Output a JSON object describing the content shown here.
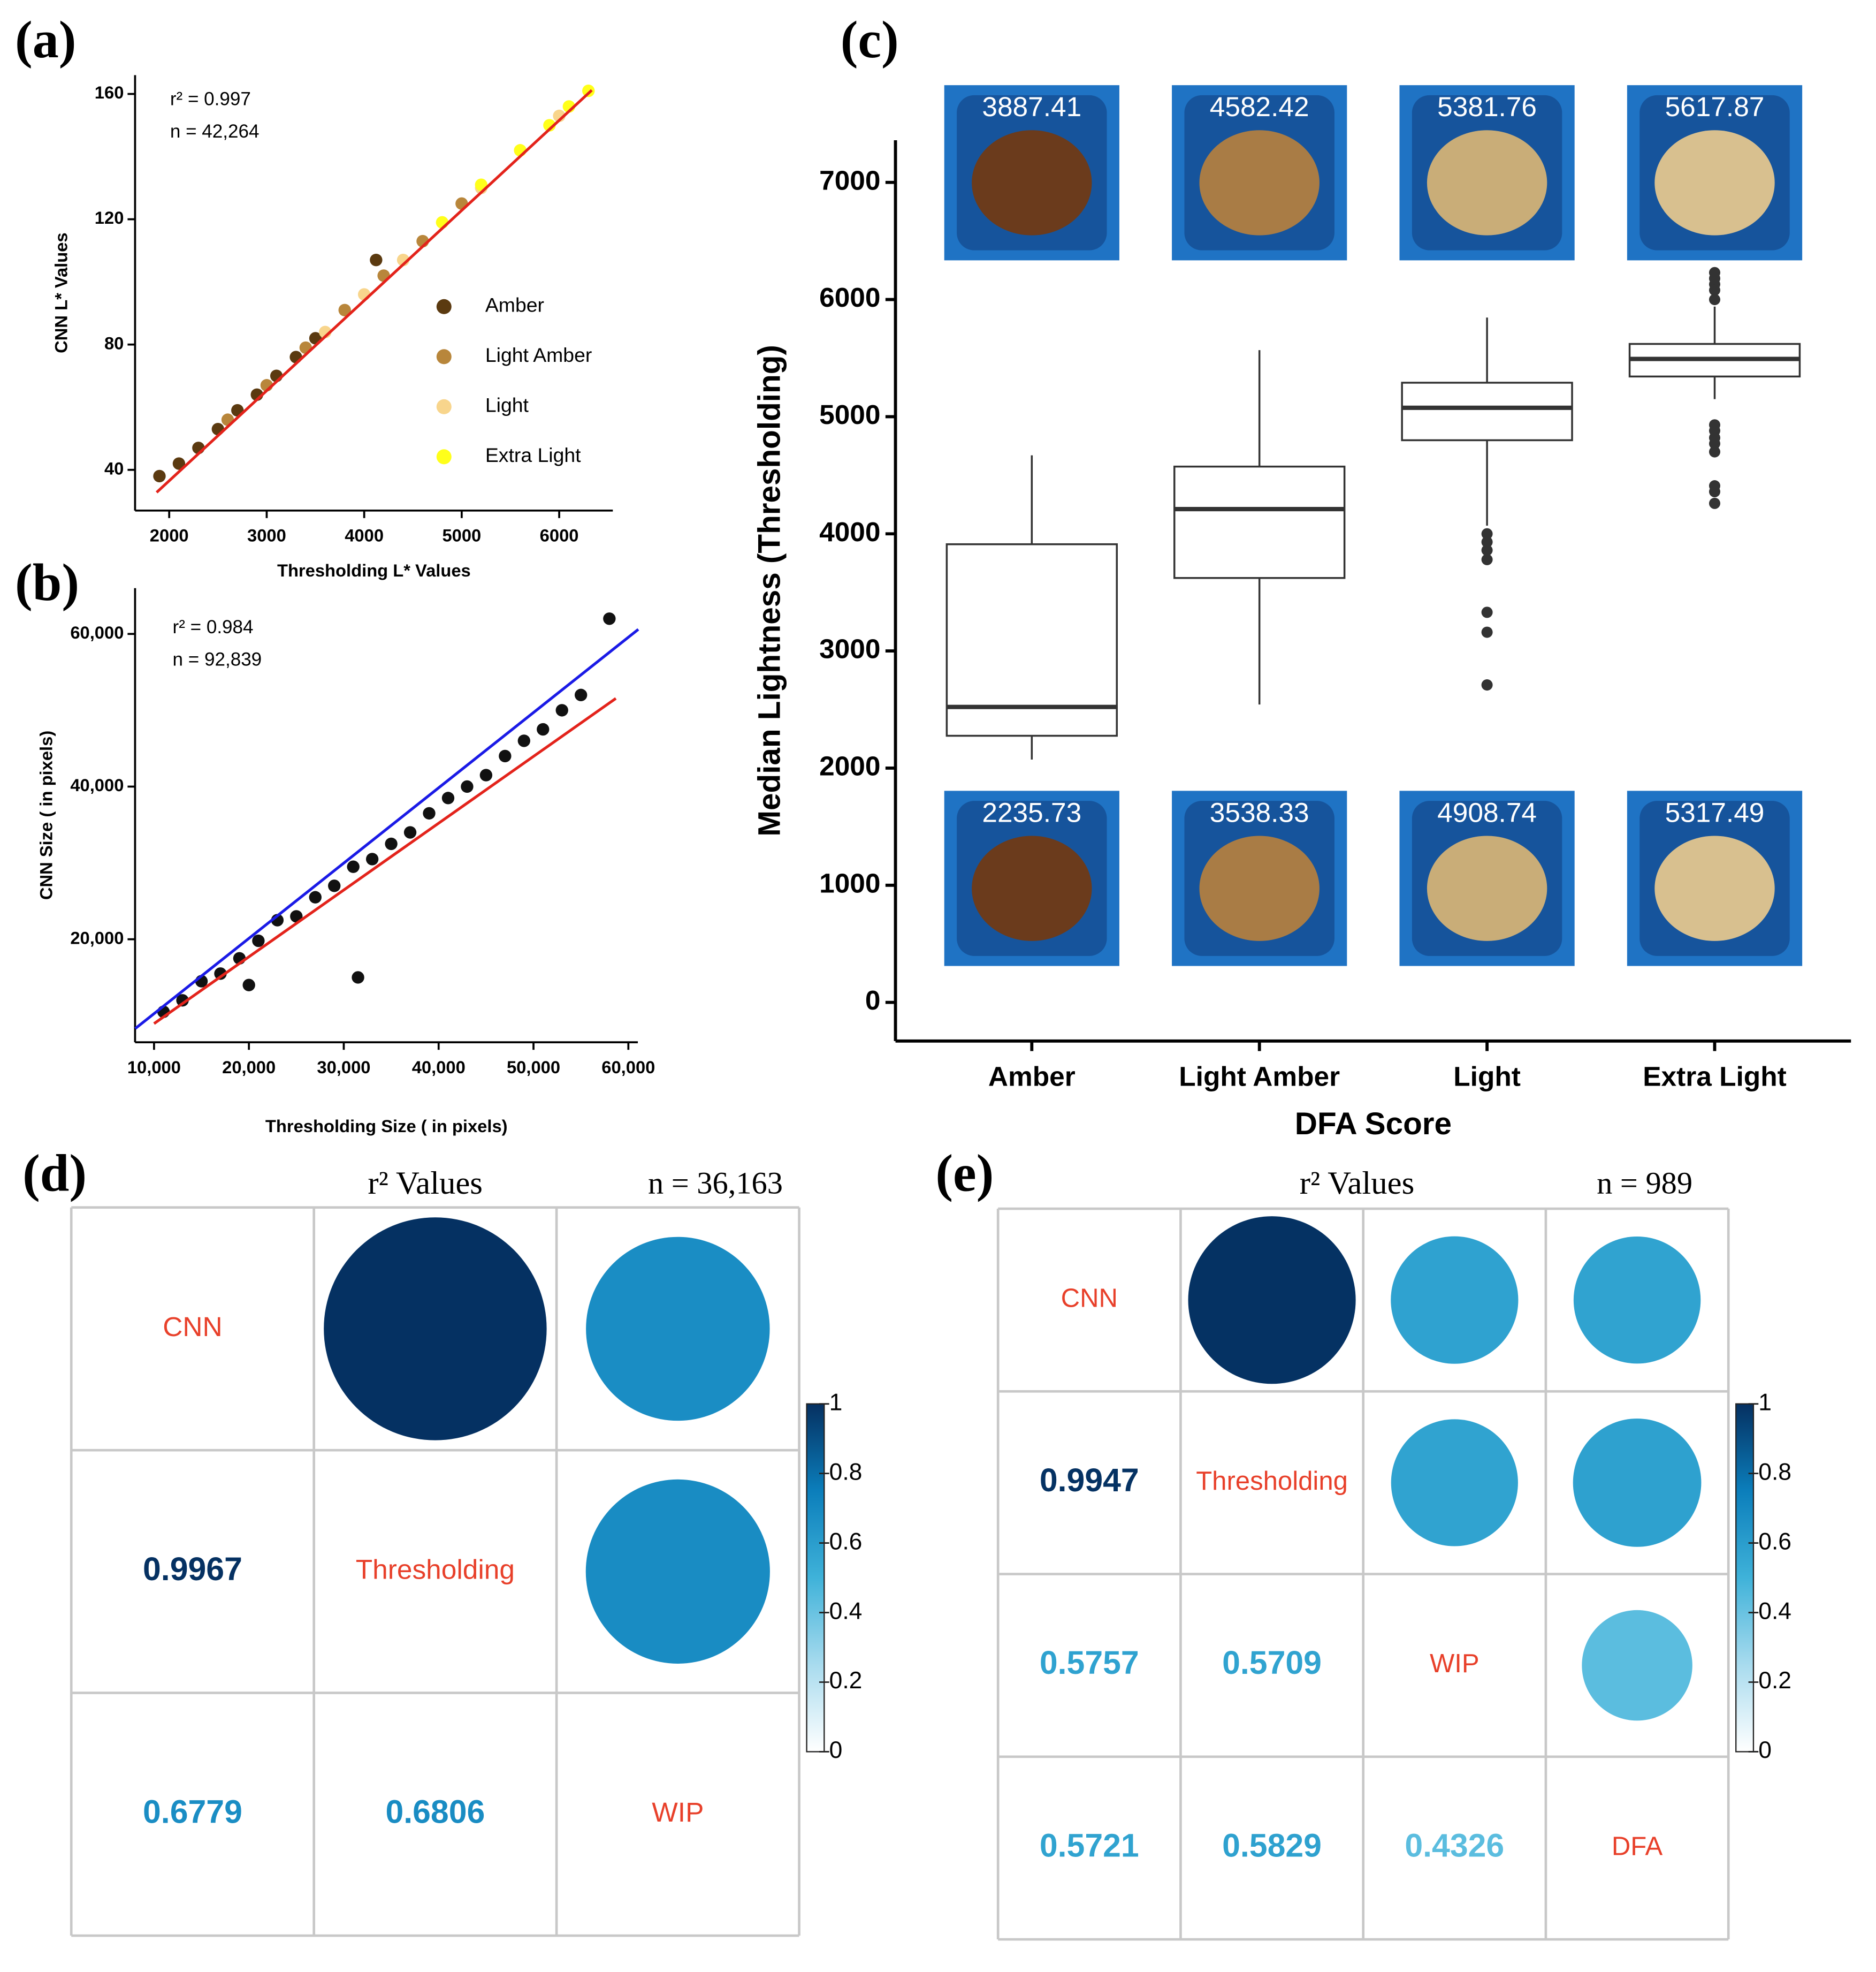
{
  "chart_data": [
    {
      "type": "scatter",
      "panel": "(a)",
      "annotations": [
        "r² = 0.997",
        "n = 42,264"
      ],
      "xlabel": "Thresholding L* Values",
      "ylabel": "CNN L* Values",
      "xlim": [
        1650,
        6550
      ],
      "ylim": [
        27,
        166
      ],
      "xticks": [
        2000,
        3000,
        4000,
        5000,
        6000
      ],
      "yticks": [
        40,
        80,
        120,
        160
      ],
      "series": [
        {
          "name": "Amber",
          "color": "#5b3a10",
          "x": [
            1900,
            2100,
            2300,
            2500,
            2700,
            2900,
            3100,
            3300,
            3500,
            4122
          ],
          "values": [
            38,
            42,
            47,
            53,
            59,
            64,
            70,
            76,
            82,
            107
          ]
        },
        {
          "name": "Light Amber",
          "color": "#b8863b",
          "x": [
            2600,
            3000,
            3400,
            3800,
            4200,
            4600,
            5000
          ],
          "values": [
            56,
            67,
            79,
            91,
            102,
            113,
            125
          ]
        },
        {
          "name": "Light",
          "color": "#f8d58c",
          "x": [
            3600,
            4000,
            4400,
            4800,
            5200,
            5600,
            6000
          ],
          "values": [
            84,
            96,
            107,
            119,
            130,
            142,
            153
          ]
        },
        {
          "name": "Extra Light",
          "color": "#ffff1a",
          "x": [
            4800,
            5200,
            5600,
            5900,
            6100,
            6300
          ],
          "values": [
            119,
            131,
            142,
            150,
            156,
            161
          ]
        }
      ],
      "fit_lines": [
        {
          "color": "#e3231b",
          "x": [
            1871,
            6334
          ],
          "values": [
            32.8,
            161.2
          ]
        }
      ]
    },
    {
      "type": "scatter",
      "panel": "(b)",
      "annotations": [
        "r² = 0.984",
        "n = 92,839"
      ],
      "xlabel": "Thresholding Size ( in pixels)",
      "ylabel": "CNN Size ( in pixels)",
      "xlim": [
        8000,
        61000
      ],
      "ylim": [
        6500,
        66000
      ],
      "xticks": [
        {
          "value": 10000,
          "label": "10,000"
        },
        {
          "value": 20000,
          "label": "20,000"
        },
        {
          "value": 30000,
          "label": "30,000"
        },
        {
          "value": 40000,
          "label": "40,000"
        },
        {
          "value": 50000,
          "label": "50,000"
        },
        {
          "value": 60000,
          "label": "60,000"
        }
      ],
      "yticks": [
        {
          "value": 20000,
          "label": "20,000"
        },
        {
          "value": 40000,
          "label": "40,000"
        },
        {
          "value": 60000,
          "label": "60,000"
        }
      ],
      "series": [
        {
          "color": "#111111",
          "x": [
            11000,
            13000,
            15000,
            17000,
            19000,
            20000,
            21000,
            23000,
            25000,
            27000,
            29000,
            31000,
            31500,
            33000,
            35000,
            37000,
            39000,
            41000,
            43000,
            45000,
            47000,
            49000,
            51000,
            53000,
            55000,
            58000
          ],
          "values": [
            10500,
            12000,
            14500,
            15500,
            17500,
            14000,
            19800,
            22500,
            23000,
            25500,
            27000,
            29500,
            15000,
            30500,
            32500,
            34000,
            36500,
            38500,
            40000,
            41500,
            44000,
            46000,
            47500,
            50000,
            52000,
            62000
          ]
        }
      ],
      "fit_lines": [
        {
          "color": "#1a1ae6",
          "x": [
            8020,
            61050
          ],
          "values": [
            8300,
            60600
          ]
        },
        {
          "color": "#e3231b",
          "x": [
            10000,
            58680
          ],
          "values": [
            8950,
            51550
          ]
        }
      ]
    },
    {
      "type": "box",
      "panel": "(c)",
      "xlabel": "DFA Score",
      "ylabel": "Median Lightness (Thresholding)",
      "categories": [
        "Amber",
        "Light Amber",
        "Light",
        "Extra Light"
      ],
      "ylim": [
        -330,
        7360
      ],
      "yticks": [
        0,
        1000,
        2000,
        3000,
        4000,
        5000,
        6000,
        7000
      ],
      "boxes": [
        {
          "whislo": 2073,
          "q1": 2276,
          "med": 2522,
          "q3": 3911,
          "whishi": 4670,
          "fliers": []
        },
        {
          "whislo": 2543,
          "q1": 3623,
          "med": 4211,
          "q3": 4574,
          "whishi": 5568,
          "fliers": []
        },
        {
          "whislo": 4070,
          "q1": 4799,
          "med": 5076,
          "q3": 5290,
          "whishi": 5846,
          "fliers": [
            4000,
            3930,
            3860,
            3780,
            3330,
            3160,
            2710
          ]
        },
        {
          "whislo": 5150,
          "q1": 5343,
          "med": 5493,
          "q3": 5621,
          "whishi": 5940,
          "fliers": [
            6230,
            6180,
            6130,
            6080,
            6000,
            4930,
            4880,
            4820,
            4770,
            4700,
            4410,
            4360,
            4260
          ]
        }
      ],
      "image_labels_top": [
        3887.41,
        4582.42,
        5381.76,
        5617.87
      ],
      "image_labels_bottom": [
        2235.73,
        3538.33,
        4908.74,
        5317.49
      ]
    },
    {
      "type": "corrplot",
      "panel": "(d)",
      "title": "r² Values",
      "note": "n = 36,163",
      "labels": [
        "CNN",
        "Thresholding",
        "WIP"
      ],
      "values": [
        [
          null,
          null,
          null
        ],
        [
          0.9967,
          null,
          null
        ],
        [
          0.6779,
          0.6806,
          null
        ]
      ],
      "clim": [
        0,
        1
      ],
      "colorbar_ticks": [
        0,
        0.2,
        0.4,
        0.6,
        0.8,
        1
      ],
      "colorscale": [
        "#ffffff",
        "#a8dbee",
        "#3fb2d9",
        "#0b7ebb",
        "#053061"
      ]
    },
    {
      "type": "corrplot",
      "panel": "(e)",
      "title": "r² Values",
      "note": "n = 989",
      "labels": [
        "CNN",
        "Thresholding",
        "WIP",
        "DFA"
      ],
      "values": [
        [
          null,
          null,
          null,
          null
        ],
        [
          0.9947,
          null,
          null,
          null
        ],
        [
          0.5757,
          0.5709,
          null,
          null
        ],
        [
          0.5721,
          0.5829,
          0.4326,
          null
        ]
      ],
      "clim": [
        0,
        1
      ],
      "colorbar_ticks": [
        0,
        0.2,
        0.4,
        0.6,
        0.8,
        1
      ],
      "colorscale": [
        "#ffffff",
        "#a8dbee",
        "#3fb2d9",
        "#0b7ebb",
        "#053061"
      ]
    }
  ]
}
